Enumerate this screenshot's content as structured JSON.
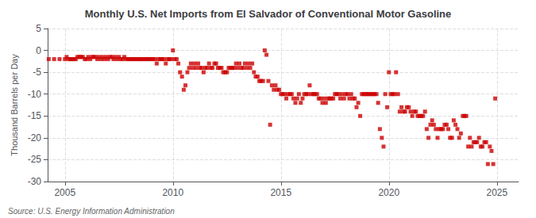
{
  "chart_data": {
    "type": "scatter",
    "title": "Monthly U.S. Net Imports from El Salvador of Conventional Motor Gasoline",
    "ylabel": "Thousand Barrels per Day",
    "annotations": [
      "Source: U.S. Energy Information Administration"
    ],
    "color": "#CC0000",
    "marker": "square",
    "grid": true,
    "xlim": [
      2004.2,
      2026.0
    ],
    "xticks": [
      2005,
      2010,
      2015,
      2020,
      2025
    ],
    "ylim": [
      -30,
      5
    ],
    "yticks": [
      5,
      0,
      -5,
      -10,
      -15,
      -20,
      -25,
      -30
    ],
    "x": [
      2004.25,
      2004.5,
      2004.75,
      2005.0,
      2005.08,
      2005.17,
      2005.25,
      2005.33,
      2005.42,
      2005.5,
      2005.58,
      2005.67,
      2005.75,
      2005.83,
      2005.92,
      2006.0,
      2006.08,
      2006.17,
      2006.25,
      2006.33,
      2006.42,
      2006.5,
      2006.58,
      2006.67,
      2006.75,
      2006.83,
      2006.92,
      2007.0,
      2007.08,
      2007.17,
      2007.25,
      2007.33,
      2007.42,
      2007.5,
      2007.58,
      2007.67,
      2007.75,
      2007.83,
      2007.92,
      2008.0,
      2008.08,
      2008.17,
      2008.25,
      2008.33,
      2008.42,
      2008.5,
      2008.58,
      2008.67,
      2008.75,
      2008.83,
      2008.92,
      2009.0,
      2009.08,
      2009.17,
      2009.25,
      2009.33,
      2009.42,
      2009.5,
      2009.58,
      2009.67,
      2009.75,
      2009.83,
      2009.92,
      2010.0,
      2010.08,
      2010.17,
      2010.25,
      2010.33,
      2010.42,
      2010.5,
      2010.58,
      2010.67,
      2010.75,
      2010.83,
      2010.92,
      2011.0,
      2011.08,
      2011.17,
      2011.25,
      2011.33,
      2011.42,
      2011.5,
      2011.58,
      2011.67,
      2011.75,
      2011.83,
      2011.92,
      2012.0,
      2012.08,
      2012.17,
      2012.25,
      2012.33,
      2012.42,
      2012.5,
      2012.58,
      2012.67,
      2012.75,
      2012.83,
      2012.92,
      2013.0,
      2013.08,
      2013.17,
      2013.25,
      2013.33,
      2013.42,
      2013.5,
      2013.58,
      2013.67,
      2013.75,
      2013.83,
      2013.92,
      2014.0,
      2014.08,
      2014.17,
      2014.25,
      2014.33,
      2014.42,
      2014.5,
      2014.58,
      2014.67,
      2014.75,
      2014.83,
      2014.92,
      2015.0,
      2015.08,
      2015.17,
      2015.25,
      2015.33,
      2015.42,
      2015.5,
      2015.58,
      2015.67,
      2015.75,
      2015.83,
      2015.92,
      2016.0,
      2016.08,
      2016.17,
      2016.25,
      2016.33,
      2016.42,
      2016.5,
      2016.58,
      2016.67,
      2016.75,
      2016.83,
      2016.92,
      2017.0,
      2017.08,
      2017.17,
      2017.25,
      2017.33,
      2017.42,
      2017.5,
      2017.58,
      2017.67,
      2017.75,
      2017.83,
      2017.92,
      2018.0,
      2018.08,
      2018.17,
      2018.25,
      2018.33,
      2018.42,
      2018.5,
      2018.58,
      2018.67,
      2018.75,
      2018.83,
      2018.92,
      2019.0,
      2019.08,
      2019.17,
      2019.25,
      2019.33,
      2019.42,
      2019.5,
      2019.58,
      2019.67,
      2019.75,
      2019.83,
      2019.92,
      2020.0,
      2020.08,
      2020.17,
      2020.25,
      2020.33,
      2020.42,
      2020.5,
      2020.58,
      2020.67,
      2020.75,
      2020.83,
      2020.92,
      2021.0,
      2021.08,
      2021.17,
      2021.25,
      2021.33,
      2021.42,
      2021.5,
      2021.58,
      2021.67,
      2021.75,
      2021.83,
      2021.92,
      2022.0,
      2022.08,
      2022.17,
      2022.25,
      2022.33,
      2022.42,
      2022.5,
      2022.58,
      2022.67,
      2022.75,
      2022.83,
      2022.92,
      2023.0,
      2023.08,
      2023.17,
      2023.25,
      2023.33,
      2023.42,
      2023.5,
      2023.58,
      2023.67,
      2023.75,
      2023.83,
      2023.92,
      2024.0,
      2024.08,
      2024.17,
      2024.25,
      2024.33,
      2024.42,
      2024.5,
      2024.58,
      2024.67,
      2024.75,
      2024.83,
      2024.92
    ],
    "values": [
      -2,
      -2,
      -2,
      -2,
      -1.5,
      -2,
      -2,
      -2,
      -2,
      -2,
      -1.5,
      -1.5,
      -1.5,
      -1.5,
      -2,
      -2,
      -1.5,
      -2,
      -1.5,
      -1.5,
      -1.5,
      -2,
      -1.5,
      -2,
      -1.5,
      -2,
      -1.5,
      -2,
      -1.5,
      -1.5,
      -2,
      -1.5,
      -2,
      -1.5,
      -2,
      -2,
      -1.5,
      -2,
      -2,
      -2,
      -2,
      -2,
      -2,
      -2,
      -2,
      -2,
      -2,
      -2,
      -2,
      -2,
      -2,
      -2,
      -2,
      -2,
      -3,
      -2,
      -2,
      -2,
      -2,
      -3,
      -2,
      -2,
      -2,
      0,
      -2,
      -2,
      -3,
      -5,
      -6,
      -9,
      -8,
      -5,
      -4,
      -3,
      -4,
      -3,
      -4,
      -3,
      -4,
      -4,
      -5,
      -4,
      -4,
      -3,
      -4,
      -4,
      -3,
      -3,
      -4,
      -4,
      -4,
      -5,
      -5,
      -5,
      -4,
      -4,
      -4,
      -4,
      -3,
      -4,
      -3,
      -4,
      -4,
      -3,
      -4,
      -3,
      -4,
      -3,
      -5,
      -6,
      -6,
      -7,
      -7,
      -7,
      0,
      -1,
      -7,
      -17,
      -8,
      -9,
      -8,
      -9,
      -9,
      -10,
      -10,
      -10,
      -11,
      -10,
      -10,
      -10,
      -11,
      -12,
      -11,
      -10,
      -12,
      -11,
      -10,
      -10,
      -10,
      -8,
      -10,
      -10,
      -10,
      -10,
      -11,
      -11,
      -12,
      -11,
      -12,
      -11,
      -11,
      -11,
      -11,
      -10,
      -10,
      -10,
      -11,
      -10,
      -11,
      -10,
      -10,
      -11,
      -10,
      -11,
      -11,
      -13,
      -12,
      -15,
      -10,
      -10,
      -10,
      -10,
      -10,
      -10,
      -10,
      -10,
      -10,
      -12,
      -18,
      -20,
      -22,
      -10,
      -13,
      -5,
      -10,
      -10,
      -10,
      -5,
      -10,
      -14,
      -13,
      -14,
      -14,
      -13,
      -13,
      -14,
      -15,
      -14,
      -14,
      -15,
      -15,
      -15,
      -15,
      -14,
      -18,
      -20,
      -17,
      -16,
      -17,
      -18,
      -20,
      -18,
      -18,
      -18,
      -17,
      -17,
      -18,
      -20,
      -20,
      -16,
      -17,
      -18,
      -20,
      -19,
      -15,
      -15,
      -15,
      -22,
      -20,
      -22,
      -21,
      -21,
      -21,
      -20,
      -22,
      -22,
      -21,
      -21,
      -26,
      -22,
      -23,
      -26,
      -11
    ]
  }
}
